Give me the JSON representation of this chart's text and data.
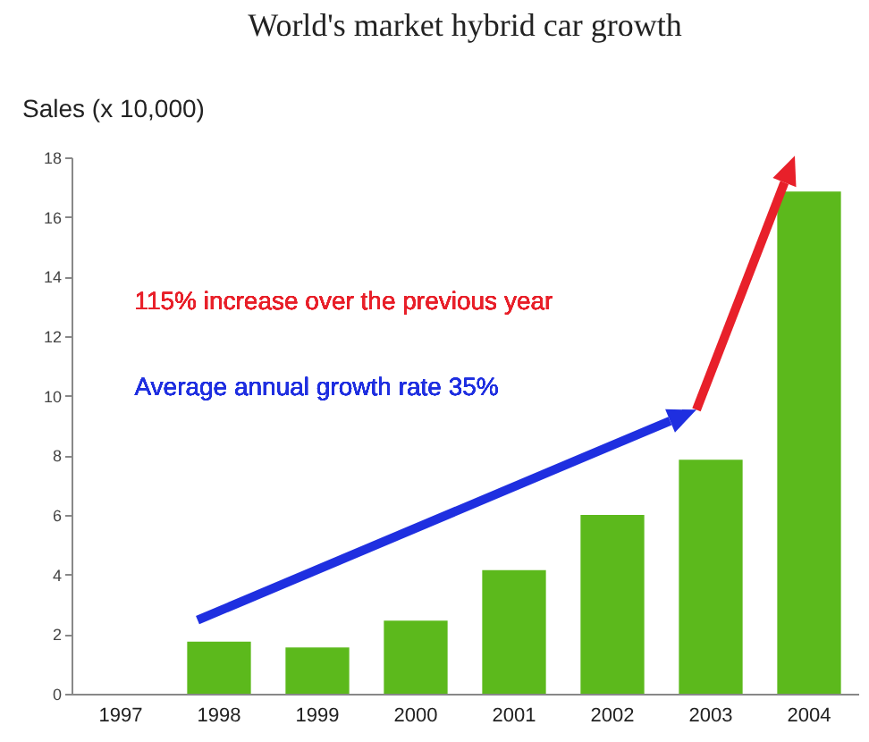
{
  "chart_data": {
    "type": "bar",
    "title": "World's market hybrid car growth",
    "ylabel": "Sales (x 10,000)",
    "categories": [
      "1997",
      "1998",
      "1999",
      "2000",
      "2001",
      "2002",
      "2003",
      "2004"
    ],
    "values": [
      null,
      1.75,
      1.55,
      2.45,
      4.15,
      6.0,
      7.85,
      16.85
    ],
    "color": "#5cb91c",
    "ylim": [
      0,
      18
    ],
    "yticks": [
      0,
      2,
      4,
      6,
      8,
      10,
      12,
      14,
      16,
      18
    ],
    "grid": false,
    "annotations": [
      "115% increase over the previous year",
      "Average annual growth rate 35%"
    ]
  }
}
